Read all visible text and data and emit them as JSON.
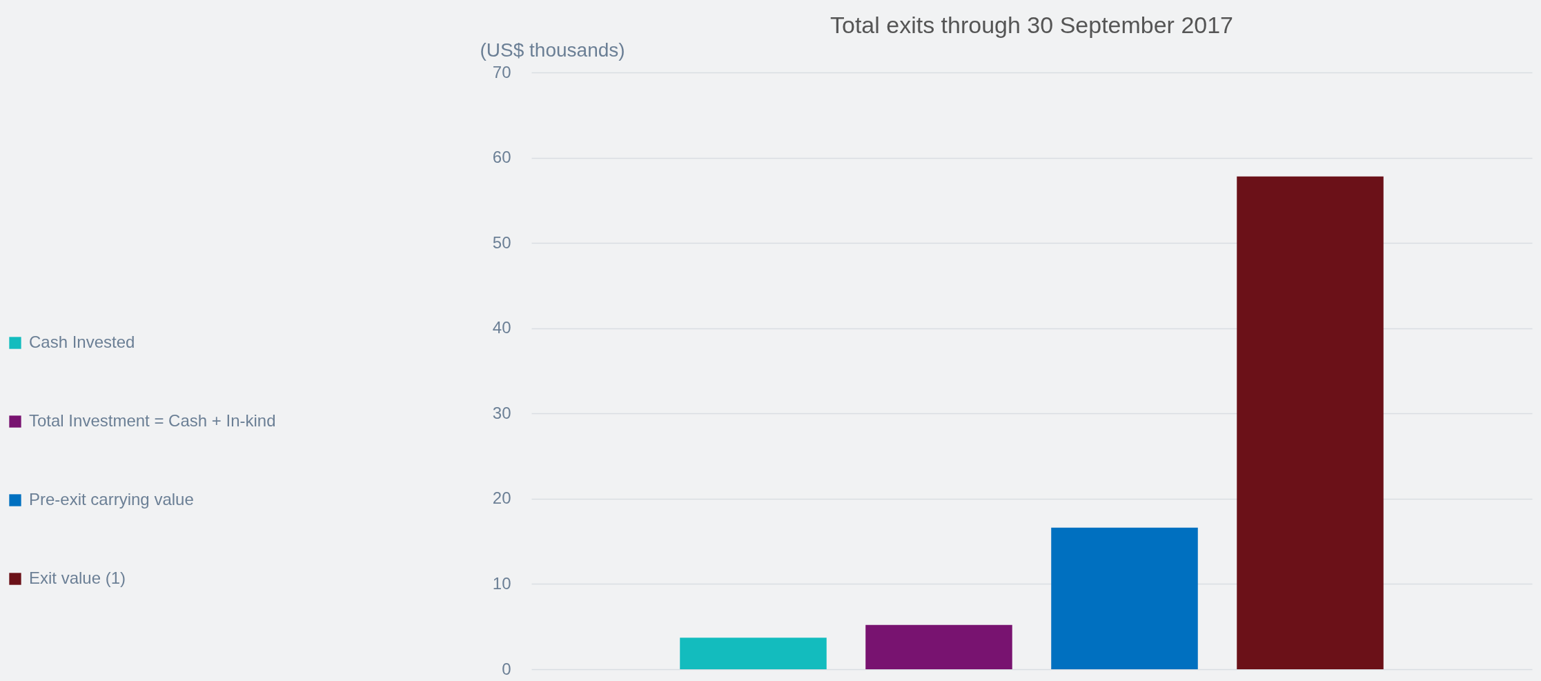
{
  "chart_data": {
    "type": "bar",
    "title": "Total exits through 30 September 2017",
    "ylabel": "(US$ thousands)",
    "categories": [
      null
    ],
    "series": [
      {
        "name": "Cash Invested",
        "color": "#13bcbe",
        "values": [
          3.7
        ]
      },
      {
        "name": "Total Investment = Cash + In-kind",
        "color": "#781370",
        "values": [
          5.2
        ]
      },
      {
        "name": "Pre-exit carrying value",
        "color": "#0070c0",
        "values": [
          16.6
        ]
      },
      {
        "name": "Exit value (1)",
        "color": "#6b1118",
        "values": [
          57.8
        ]
      }
    ],
    "ylim": [
      0,
      70
    ],
    "yticks": [
      0,
      10,
      20,
      30,
      40,
      50,
      60,
      70
    ],
    "grid": "y",
    "legend": "left"
  }
}
